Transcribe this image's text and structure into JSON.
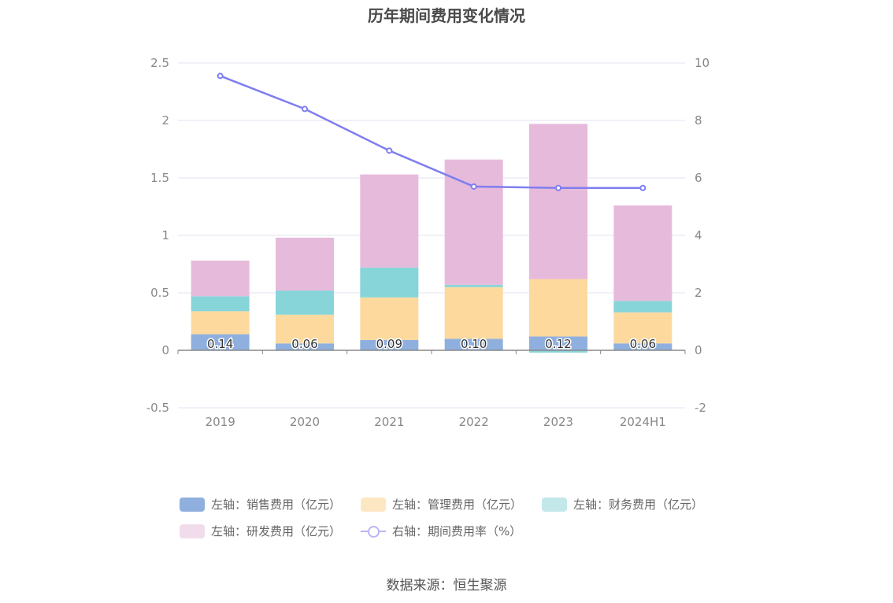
{
  "title": "历年期间费用变化情况",
  "source": "数据来源：恒生聚源",
  "legend": [
    {
      "label": "左轴：销售费用（亿元）",
      "color": "#8fb0de"
    },
    {
      "label": "左轴：管理费用（亿元）",
      "color": "#fde7c3"
    },
    {
      "label": "左轴：财务费用（亿元）",
      "color": "#c2e8ea"
    },
    {
      "label": "左轴：研发费用（亿元）",
      "color": "#f1dcec"
    },
    {
      "label": "右轴：期间费用率（%）",
      "color": "#b9b6f5"
    }
  ],
  "chart_data": {
    "type": "bar",
    "stacked": true,
    "categories": [
      "2019",
      "2020",
      "2021",
      "2022",
      "2023",
      "2024H1"
    ],
    "left_axis": {
      "ylim": [
        -0.5,
        2.5
      ],
      "ticks": [
        "2.5",
        "2",
        "1.5",
        "1",
        "0.5",
        "0",
        "-0.5"
      ]
    },
    "right_axis": {
      "ylim": [
        -2,
        10
      ],
      "ticks": [
        "10",
        "8",
        "6",
        "4",
        "2",
        "0",
        "-2"
      ]
    },
    "series": [
      {
        "name": "左轴：销售费用（亿元）",
        "axis": "left",
        "color": "#8fb0de",
        "values": [
          0.14,
          0.06,
          0.09,
          0.1,
          0.12,
          0.06
        ],
        "labels": [
          "0.14",
          "0.06",
          "0.09",
          "0.10",
          "0.12",
          "0.06"
        ]
      },
      {
        "name": "左轴：管理费用（亿元）",
        "axis": "left",
        "color": "#fdd99e",
        "values": [
          0.2,
          0.25,
          0.37,
          0.45,
          0.5,
          0.27
        ]
      },
      {
        "name": "左轴：财务费用（亿元）",
        "axis": "left",
        "color": "#87d5d9",
        "values": [
          0.13,
          0.21,
          0.26,
          0.02,
          -0.02,
          0.1
        ]
      },
      {
        "name": "左轴：研发费用（亿元）",
        "axis": "left",
        "color": "#e6badb",
        "values": [
          0.31,
          0.46,
          0.81,
          1.09,
          1.35,
          0.83
        ]
      },
      {
        "name": "右轴：期间费用率（%）",
        "axis": "right",
        "type": "line",
        "color": "#7f7ef0",
        "values": [
          9.55,
          8.4,
          6.95,
          5.7,
          5.65,
          5.65
        ]
      }
    ]
  }
}
